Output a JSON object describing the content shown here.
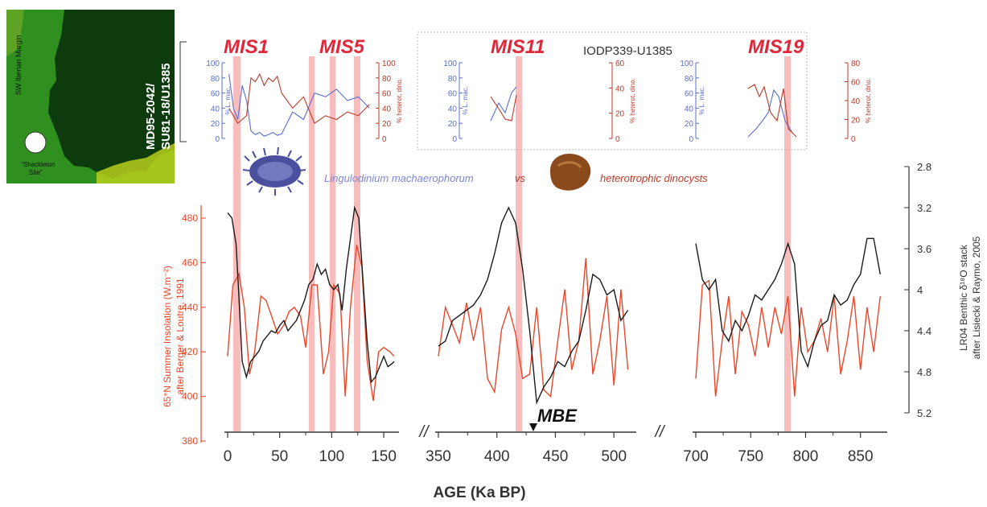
{
  "map": {
    "region_label": "SW Iberian Margin",
    "core_label_1": "MD95-2042/",
    "core_label_2": "SU81-18/U1385",
    "site_label_1": "\"Shackleton",
    "site_label_2": "Site\"",
    "colors": {
      "sea": "#2f8f1f",
      "land": "#0d3b0d",
      "coast": "#c8d800"
    }
  },
  "mis_labels": [
    "MIS1",
    "MIS5",
    "MIS11",
    "MIS19"
  ],
  "iodp_label": "IODP339-U1385",
  "legend": {
    "species_1": "Lingulodinium machaerophorum",
    "vs": "vs",
    "species_2": "heterotrophic dinocysts",
    "icon_1": "lingulodinium-cyst-icon",
    "icon_2": "heterotrophic-cyst-icon"
  },
  "bottom_annotation": "MBE",
  "axes": {
    "x_title": "AGE (Ka BP)",
    "x_ticks": [
      "0",
      "50",
      "100",
      "150",
      "350",
      "400",
      "450",
      "500",
      "700",
      "750",
      "800",
      "850"
    ],
    "left_title_1": "65°N Summer Insolation (W.m⁻²)",
    "left_title_2": "after Berger & Loutre, 1991",
    "left_ticks": [
      "380",
      "400",
      "420",
      "440",
      "460",
      "480"
    ],
    "right_title_1": "LR04 Benthic δ¹⁸O stack",
    "right_title_2": "after Lisiecki & Raymo, 2005",
    "right_ticks": [
      "2.8",
      "3.2",
      "3.6",
      "4",
      "4.4",
      "4.8",
      "5.2"
    ],
    "break_symbol": "//"
  },
  "mini_axes": {
    "ticks_100": [
      "100",
      "80",
      "60",
      "40",
      "20",
      "0"
    ],
    "ticks_60": [
      "60",
      "40",
      "20",
      "0"
    ],
    "ticks_80": [
      "80",
      "60",
      "40",
      "20",
      "0"
    ],
    "left_title": "% L. mac.",
    "right_title": "% heterot. dino."
  },
  "colors": {
    "insolation": "#e8472a",
    "benthic": "#1b1b1b",
    "lmac": "#5a6fd0",
    "hetero": "#b83a2a",
    "mis_band": "#f4a7a7",
    "mis_text": "#e0283a",
    "axis_left": "#e8472a"
  },
  "chart_data": [
    {
      "type": "line",
      "title": "",
      "xlabel": "AGE (Ka BP)",
      "ylabel": "65°N Summer Insolation (W.m⁻²)",
      "ylim": [
        380,
        480
      ],
      "x_segments": [
        [
          0,
          160
        ],
        [
          350,
          515
        ],
        [
          700,
          870
        ]
      ],
      "series": [
        {
          "name": "65°N Summer Insolation",
          "x": [
            0,
            5,
            11,
            16,
            21,
            26,
            32,
            37,
            43,
            48,
            54,
            59,
            64,
            70,
            75,
            81,
            86,
            92,
            97,
            102,
            108,
            113,
            118,
            124,
            129,
            134,
            140,
            145,
            150,
            156,
            160
          ],
          "y": [
            418,
            450,
            455,
            440,
            410,
            420,
            445,
            443,
            435,
            428,
            432,
            438,
            440,
            436,
            422,
            450,
            450,
            410,
            420,
            450,
            446,
            400,
            440,
            468,
            458,
            416,
            398,
            420,
            422,
            420,
            418
          ]
        },
        {
          "name": "65°N Summer Insolation",
          "x": [
            350,
            356,
            362,
            368,
            374,
            380,
            386,
            392,
            398,
            404,
            410,
            416,
            422,
            428,
            434,
            440,
            446,
            452,
            458,
            464,
            470,
            476,
            482,
            488,
            494,
            500,
            506,
            512
          ],
          "y": [
            418,
            440,
            432,
            424,
            442,
            425,
            440,
            408,
            402,
            430,
            440,
            428,
            408,
            410,
            440,
            403,
            400,
            425,
            448,
            412,
            425,
            462,
            410,
            425,
            445,
            405,
            448,
            412
          ]
        },
        {
          "name": "65°N Summer Insolation",
          "x": [
            700,
            706,
            712,
            718,
            724,
            730,
            736,
            742,
            748,
            754,
            760,
            766,
            772,
            778,
            784,
            790,
            796,
            802,
            808,
            814,
            820,
            826,
            832,
            838,
            844,
            850,
            856,
            862,
            868
          ],
          "y": [
            408,
            450,
            452,
            400,
            425,
            445,
            410,
            438,
            432,
            418,
            440,
            422,
            440,
            428,
            445,
            400,
            440,
            420,
            425,
            435,
            420,
            445,
            410,
            425,
            445,
            412,
            440,
            420,
            445
          ]
        }
      ]
    },
    {
      "type": "line",
      "title": "",
      "xlabel": "AGE (Ka BP)",
      "ylabel": "LR04 Benthic δ¹⁸O stack",
      "ylim": [
        5.2,
        2.8
      ],
      "series": [
        {
          "name": "LR04 Benthic δ¹⁸O",
          "x": [
            0,
            4,
            8,
            10,
            14,
            18,
            22,
            26,
            30,
            34,
            38,
            42,
            46,
            50,
            54,
            58,
            62,
            66,
            70,
            74,
            78,
            82,
            86,
            90,
            94,
            98,
            102,
            106,
            110,
            114,
            118,
            122,
            126,
            130,
            134,
            138,
            142,
            146,
            150,
            154,
            158,
            160
          ],
          "y": [
            3.25,
            3.3,
            3.55,
            3.9,
            4.7,
            4.85,
            4.7,
            4.65,
            4.6,
            4.5,
            4.45,
            4.4,
            4.42,
            4.35,
            4.3,
            4.4,
            4.35,
            4.3,
            4.2,
            4.1,
            3.95,
            3.9,
            3.75,
            3.85,
            3.8,
            3.95,
            4.0,
            3.95,
            4.2,
            3.8,
            3.5,
            3.2,
            3.3,
            3.9,
            4.5,
            4.9,
            4.85,
            4.75,
            4.65,
            4.75,
            4.72,
            4.7
          ],
          "segment": 1
        },
        {
          "name": "LR04 Benthic δ¹⁸O",
          "x": [
            350,
            356,
            362,
            368,
            374,
            380,
            386,
            392,
            398,
            404,
            410,
            416,
            422,
            428,
            434,
            440,
            446,
            452,
            458,
            464,
            470,
            476,
            482,
            488,
            494,
            500,
            506,
            512
          ],
          "y": [
            4.55,
            4.5,
            4.3,
            4.25,
            4.2,
            4.15,
            4.05,
            3.9,
            3.65,
            3.35,
            3.2,
            3.35,
            3.8,
            4.4,
            5.1,
            4.95,
            4.85,
            4.7,
            4.75,
            4.6,
            4.5,
            4.2,
            3.85,
            3.9,
            4.05,
            4.0,
            4.3,
            4.2
          ],
          "segment": 2
        },
        {
          "name": "LR04 Benthic δ¹⁸O",
          "x": [
            700,
            706,
            712,
            718,
            724,
            730,
            736,
            742,
            748,
            754,
            760,
            766,
            772,
            778,
            784,
            790,
            796,
            802,
            808,
            814,
            820,
            826,
            832,
            838,
            844,
            850,
            856,
            862,
            868
          ],
          "y": [
            3.55,
            3.9,
            4.0,
            3.9,
            4.4,
            4.5,
            4.3,
            4.4,
            4.25,
            4.05,
            4.1,
            4.0,
            3.9,
            3.75,
            3.55,
            3.75,
            4.6,
            4.75,
            4.5,
            4.35,
            4.3,
            4.05,
            4.15,
            4.1,
            3.95,
            3.85,
            3.5,
            3.5,
            3.85
          ],
          "segment": 3
        }
      ]
    },
    {
      "type": "line",
      "title": "",
      "xlabel": "",
      "ylabel": "% L. mac.",
      "ylim": [
        0,
        100
      ],
      "series": [
        {
          "name": "L. mac. MIS1-5",
          "x": [
            2,
            6,
            10,
            14,
            18,
            22,
            26,
            30,
            34,
            38,
            42,
            46,
            50,
            60,
            70,
            80,
            90,
            100,
            110,
            120,
            130
          ],
          "y": [
            85,
            40,
            25,
            70,
            50,
            10,
            5,
            8,
            3,
            5,
            8,
            4,
            6,
            35,
            25,
            60,
            55,
            65,
            50,
            55,
            40
          ]
        },
        {
          "name": "hetero MIS1-5",
          "x": [
            2,
            6,
            10,
            14,
            18,
            22,
            26,
            30,
            34,
            38,
            42,
            46,
            50,
            60,
            70,
            80,
            90,
            100,
            110,
            120,
            130
          ],
          "y": [
            40,
            30,
            20,
            25,
            30,
            80,
            75,
            85,
            70,
            80,
            75,
            82,
            60,
            40,
            55,
            20,
            30,
            25,
            35,
            30,
            45
          ]
        }
      ]
    }
  ]
}
